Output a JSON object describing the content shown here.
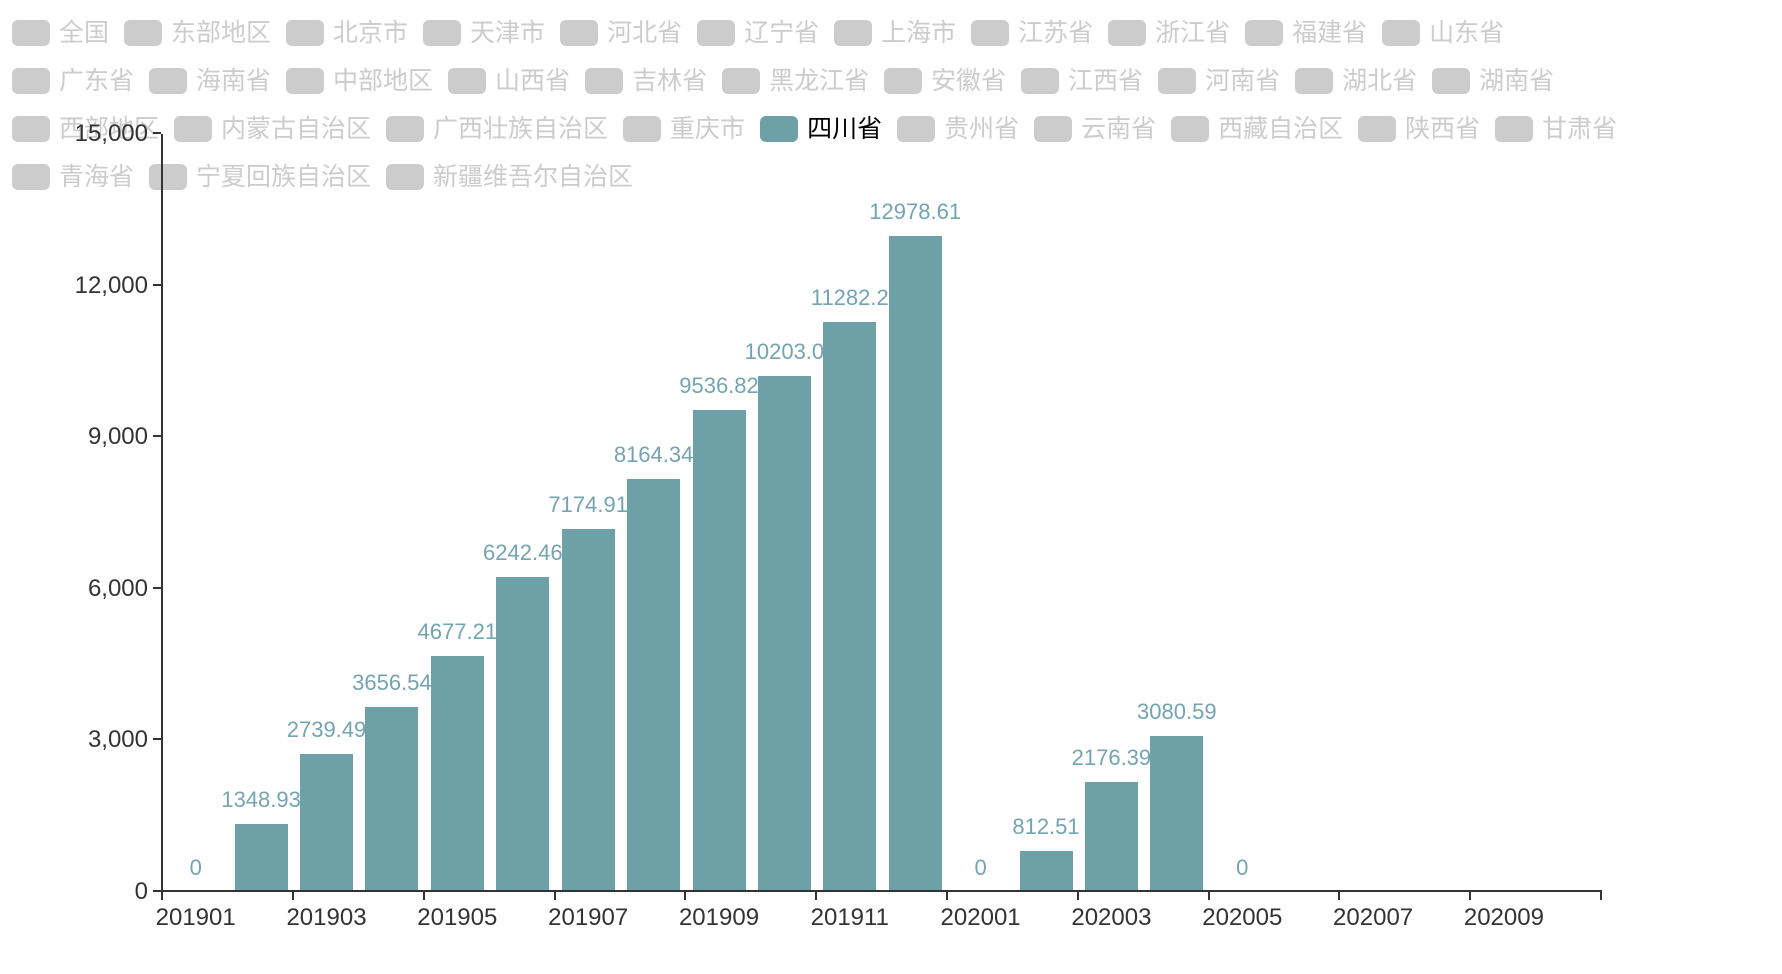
{
  "colors": {
    "accent": "#6EA0A8",
    "value_label": "#74A4AF",
    "legend_inactive": "#cccccc",
    "legend_selected_text": "#000000",
    "axis": "#333333",
    "background": "#ffffff"
  },
  "chart_data": {
    "type": "bar",
    "title": "",
    "xlabel": "",
    "ylabel": "",
    "grid": false,
    "legend_position": "top",
    "x": [
      "201901",
      "201902",
      "201903",
      "201904",
      "201905",
      "201906",
      "201907",
      "201908",
      "201909",
      "201910",
      "201911",
      "201912",
      "202001",
      "202002",
      "202003",
      "202004",
      "202005",
      "202006",
      "202007",
      "202008",
      "202009"
    ],
    "series": [
      {
        "name": "四川省",
        "values": [
          0,
          1348.93,
          2739.49,
          3656.54,
          4677.21,
          6242.46,
          7174.91,
          8164.34,
          9536.82,
          10203.0,
          11282.2,
          12978.61,
          0,
          812.51,
          2176.39,
          3080.59,
          0,
          null,
          null,
          null,
          null
        ]
      }
    ],
    "value_labels": [
      "0",
      "1348.93",
      "2739.49",
      "3656.54",
      "4677.21",
      "6242.46",
      "7174.91",
      "8164.34",
      "9536.82",
      "10203.0",
      "11282.2",
      "12978.61",
      "0",
      "812.51",
      "2176.39",
      "3080.59",
      "0",
      null,
      null,
      null,
      null
    ],
    "ylim": [
      0,
      15000
    ],
    "yticks": [
      0,
      3000,
      6000,
      9000,
      12000,
      15000
    ],
    "ytick_labels": [
      "0",
      "3,000",
      "6,000",
      "9,000",
      "12,000",
      "15,000"
    ],
    "xtick_labels": [
      "201901",
      "201903",
      "201905",
      "201907",
      "201909",
      "201911",
      "202001",
      "202003",
      "202005",
      "202007",
      "202009"
    ]
  },
  "legend": {
    "rows": [
      [
        {
          "label": "全国",
          "selected": false
        },
        {
          "label": "东部地区",
          "selected": false
        },
        {
          "label": "北京市",
          "selected": false
        },
        {
          "label": "天津市",
          "selected": false
        },
        {
          "label": "河北省",
          "selected": false
        },
        {
          "label": "辽宁省",
          "selected": false
        },
        {
          "label": "上海市",
          "selected": false
        },
        {
          "label": "江苏省",
          "selected": false
        },
        {
          "label": "浙江省",
          "selected": false
        },
        {
          "label": "福建省",
          "selected": false
        },
        {
          "label": "山东省",
          "selected": false
        }
      ],
      [
        {
          "label": "广东省",
          "selected": false
        },
        {
          "label": "海南省",
          "selected": false
        },
        {
          "label": "中部地区",
          "selected": false
        },
        {
          "label": "山西省",
          "selected": false
        },
        {
          "label": "吉林省",
          "selected": false
        },
        {
          "label": "黑龙江省",
          "selected": false
        },
        {
          "label": "安徽省",
          "selected": false
        },
        {
          "label": "江西省",
          "selected": false
        },
        {
          "label": "河南省",
          "selected": false
        },
        {
          "label": "湖北省",
          "selected": false
        },
        {
          "label": "湖南省",
          "selected": false
        }
      ],
      [
        {
          "label": "西部地区",
          "selected": false
        },
        {
          "label": "内蒙古自治区",
          "selected": false
        },
        {
          "label": "广西壮族自治区",
          "selected": false
        },
        {
          "label": "重庆市",
          "selected": false
        },
        {
          "label": "四川省",
          "selected": true
        },
        {
          "label": "贵州省",
          "selected": false
        },
        {
          "label": "云南省",
          "selected": false
        },
        {
          "label": "西藏自治区",
          "selected": false
        },
        {
          "label": "陕西省",
          "selected": false
        },
        {
          "label": "甘肃省",
          "selected": false
        }
      ],
      [
        {
          "label": "青海省",
          "selected": false
        },
        {
          "label": "宁夏回族自治区",
          "selected": false
        },
        {
          "label": "新疆维吾尔自治区",
          "selected": false
        }
      ]
    ]
  }
}
